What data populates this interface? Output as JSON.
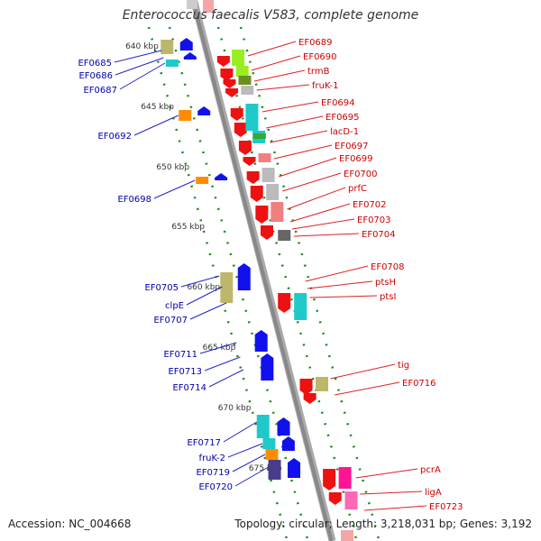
{
  "title": "Enterococcus faecalis V583, complete genome",
  "footer": {
    "accession": "Accession: NC_004668",
    "summary": "Topology: circular; Length: 3,218,031 bp; Genes: 3,192"
  },
  "scale": {
    "unit": "kbp",
    "ticks": [
      "640 kbp",
      "645 kbp",
      "650 kbp",
      "655 kbp",
      "660 kbp",
      "665 kbp",
      "670 kbp",
      "675 kbp"
    ]
  },
  "forward_strand_labels": [
    "EF0689",
    "EF0690",
    "trmB",
    "fruK-1",
    "EF0694",
    "EF0695",
    "lacD-1",
    "EF0697",
    "EF0699",
    "EF0700",
    "prfC",
    "EF0702",
    "EF0703",
    "EF0704",
    "EF0708",
    "ptsH",
    "ptsI",
    "tig",
    "EF0716",
    "pcrA",
    "ligA",
    "EF0723"
  ],
  "reverse_strand_labels": [
    "EF0685",
    "EF0686",
    "EF0687",
    "EF0692",
    "EF0698",
    "EF0705",
    "clpE",
    "EF0707",
    "EF0711",
    "EF0713",
    "EF0714",
    "EF0717",
    "fruK-2",
    "EF0719",
    "EF0720"
  ],
  "colors": {
    "forward_label": "#cc0000",
    "reverse_label": "#0000aa",
    "leader_forward": "#dd2222",
    "leader_reverse": "#2222cc",
    "tick": "#1a8a1a",
    "backbone": "#888888",
    "forward_gene": "#ee1111",
    "reverse_gene": "#1111ee"
  },
  "feature_colors": {
    "khaki": "#bdb76b",
    "cyan": "#1fc9c9",
    "lime": "#99ee22",
    "olive": "#6b8e23",
    "orange": "#ff8c00",
    "silver": "#bbbbbb",
    "salmon": "#f08080",
    "gray": "#666666",
    "dark-slate": "#483d8b",
    "magenta": "#ff1493",
    "pink": "#ff69b4",
    "green": "#33aa33"
  },
  "icons": {
    "forward_gene": "right-arrow-shape",
    "reverse_gene": "left-arrow-shape",
    "backbone": "genome-line"
  }
}
